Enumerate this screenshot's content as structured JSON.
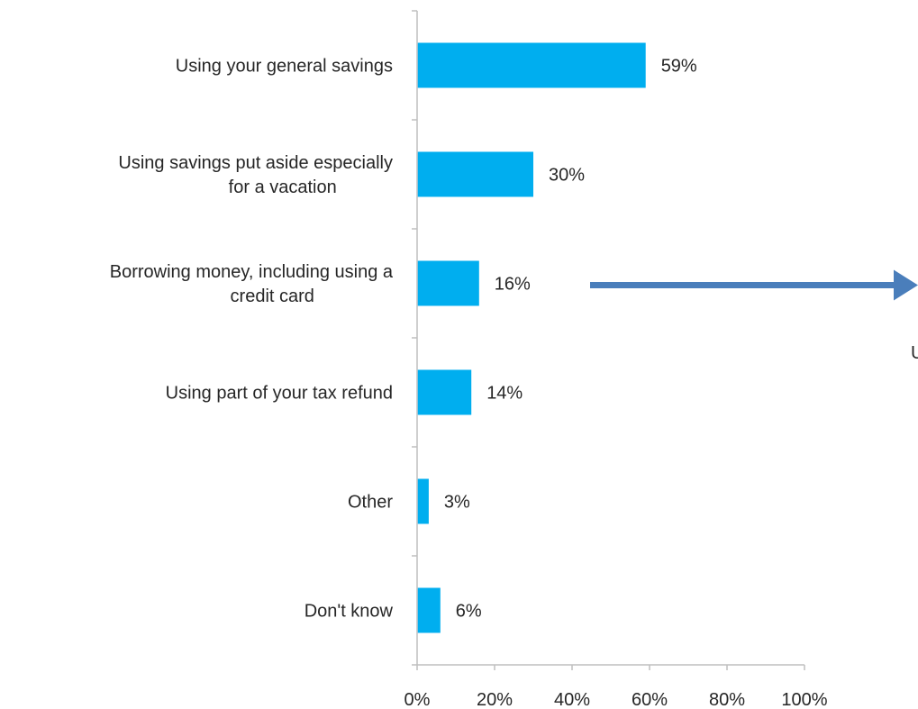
{
  "chart_data": {
    "type": "bar",
    "orientation": "horizontal",
    "categories": [
      "Using your general savings",
      "Using savings put aside especially for a vacation",
      "Borrowing money, including using a credit card",
      "Using part of your tax refund",
      "Other",
      "Don't know"
    ],
    "category_lines": [
      [
        "Using your general savings"
      ],
      [
        "Using savings put aside especially",
        "for a vacation"
      ],
      [
        "Borrowing money, including using a",
        "credit card"
      ],
      [
        "Using part of your tax refund"
      ],
      [
        "Other"
      ],
      [
        "Don't know"
      ]
    ],
    "values": [
      59,
      30,
      16,
      14,
      3,
      6
    ],
    "data_labels": [
      "59%",
      "30%",
      "16%",
      "14%",
      "3%",
      "6%"
    ],
    "xlim": [
      0,
      100
    ],
    "x_ticks": [
      0,
      20,
      40,
      60,
      80,
      100
    ],
    "x_tick_labels": [
      "0%",
      "20%",
      "40%",
      "60%",
      "80%",
      "100%"
    ],
    "grid": false,
    "legend": "none",
    "colors": {
      "bar": "#00AEEF",
      "axis": "#BFBFBF",
      "text": "#262626",
      "arrow": "#4A7EBB"
    },
    "annotation": {
      "type": "arrow",
      "from_category": "Borrowing money, including using a credit card",
      "truncated_text": "U"
    }
  }
}
